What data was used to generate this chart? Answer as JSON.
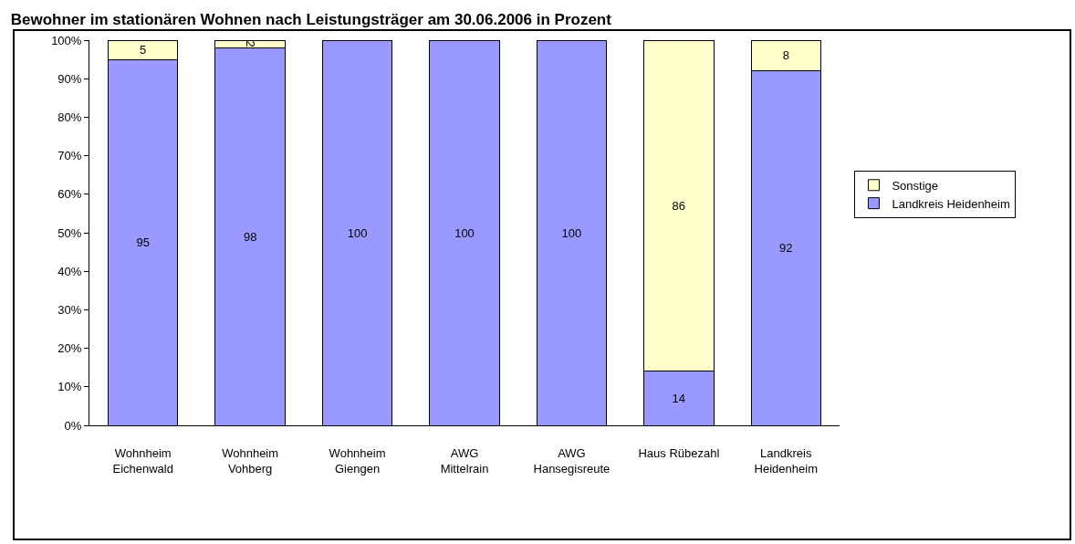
{
  "chart_data": {
    "type": "bar",
    "title": "Bewohner im stationären Wohnen nach Leistungsträger am 30.06.2006 in Prozent",
    "categories": [
      "Wohnheim\nEichenwald",
      "Wohnheim\nVohberg",
      "Wohnheim\nGiengen",
      "AWG\nMittelrain",
      "AWG\nHansegisreute",
      "Haus Rübezahl",
      "Landkreis\nHeidenheim"
    ],
    "stacked": true,
    "series": [
      {
        "name": "Landkreis Heidenheim",
        "color": "#9999ff",
        "values": [
          95,
          98,
          100,
          100,
          100,
          14,
          92
        ],
        "value_labels": [
          "95",
          "98",
          "100",
          "100",
          "100",
          "14",
          "92"
        ]
      },
      {
        "name": "Sonstige",
        "color": "#ffffcc",
        "values": [
          5,
          2,
          0,
          0,
          0,
          86,
          8
        ],
        "value_labels": [
          "5",
          "2",
          null,
          null,
          null,
          "86",
          "8"
        ]
      }
    ],
    "ylim": [
      0,
      100
    ],
    "yticks": [
      {
        "value": 0,
        "label": "0%"
      },
      {
        "value": 10,
        "label": "10%"
      },
      {
        "value": 20,
        "label": "20%"
      },
      {
        "value": 30,
        "label": "30%"
      },
      {
        "value": 40,
        "label": "40%"
      },
      {
        "value": 50,
        "label": "50%"
      },
      {
        "value": 60,
        "label": "60%"
      },
      {
        "value": 70,
        "label": "70%"
      },
      {
        "value": 80,
        "label": "80%"
      },
      {
        "value": 90,
        "label": "90%"
      },
      {
        "value": 100,
        "label": "100%"
      }
    ],
    "grid": false,
    "legend": "right"
  }
}
